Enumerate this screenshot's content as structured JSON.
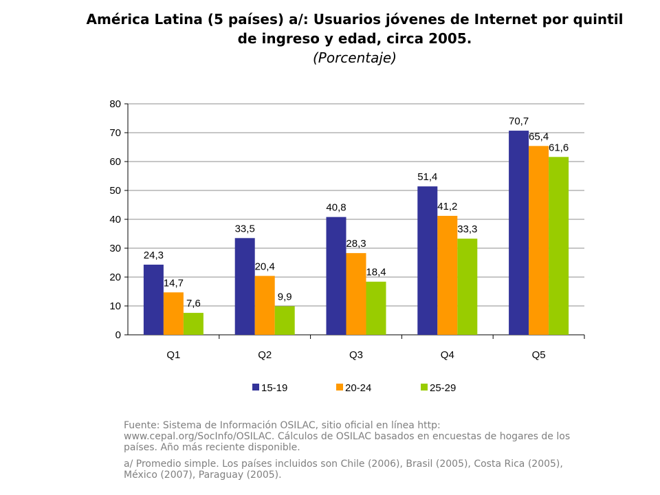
{
  "title": "América Latina (5 países) a/: Usuarios jóvenes de Internet por quintil de ingreso y edad, circa 2005.",
  "subtitle": "(Porcentaje)",
  "notes": {
    "source": "Fuente: Sistema de Información OSILAC, sitio oficial en línea http: www.cepal.org/SocInfo/OSILAC. Cálculos de OSILAC basados en encuestas de hogares de los países. Año más reciente disponible.",
    "footnote": "a/ Promedio simple. Los países incluidos son Chile (2006), Brasil (2005), Costa Rica (2005), México (2007), Paraguay (2005)."
  },
  "chart_data": {
    "type": "bar",
    "categories": [
      "Q1",
      "Q2",
      "Q3",
      "Q4",
      "Q5"
    ],
    "series": [
      {
        "name": "15-19",
        "color": "#333399",
        "values": [
          24.3,
          33.5,
          40.8,
          51.4,
          70.7
        ],
        "labels": [
          "24,3",
          "33,5",
          "40,8",
          "51,4",
          "70,7"
        ]
      },
      {
        "name": "20-24",
        "color": "#ff9900",
        "values": [
          14.7,
          20.4,
          28.3,
          41.2,
          65.4
        ],
        "labels": [
          "14,7",
          "20,4",
          "28,3",
          "41,2",
          "65,4"
        ]
      },
      {
        "name": "25-29",
        "color": "#99cc00",
        "values": [
          7.6,
          9.9,
          18.4,
          33.3,
          61.6
        ],
        "labels": [
          "7,6",
          "9,9",
          "18,4",
          "33,3",
          "61,6"
        ]
      }
    ],
    "ylim": [
      0,
      80
    ],
    "yticks": [
      "0",
      "10",
      "20",
      "30",
      "40",
      "50",
      "60",
      "70",
      "80"
    ],
    "grid": true,
    "legend_position": "bottom"
  }
}
